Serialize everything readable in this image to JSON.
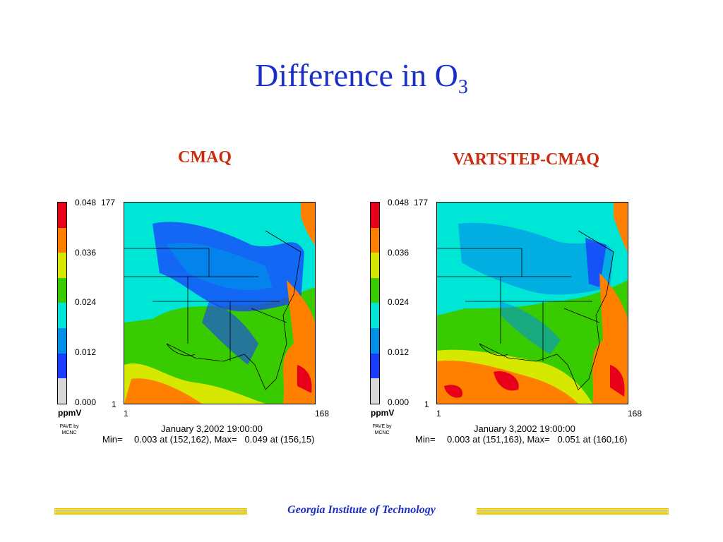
{
  "title": {
    "text": "Difference in O",
    "subscript": "3"
  },
  "panels": [
    {
      "heading": "CMAQ",
      "colorbar": {
        "top": "0.048",
        "t2": "0.036",
        "t3": "0.024",
        "t4": "0.012",
        "t5": "0.000",
        "unit": "ppmV"
      },
      "axis": {
        "y_max": "177",
        "y_min": "1",
        "x_min": "1",
        "x_max": "168"
      },
      "date": "January 3,2002 19:00:00",
      "minmax_label": "Min=",
      "minmax_value": "0.003 at (152,162), Max=   0.049 at (156,15)",
      "logo": "PAVE by MCNC"
    },
    {
      "heading": "VARTSTEP-CMAQ",
      "colorbar": {
        "top": "0.048",
        "t2": "0.036",
        "t3": "0.024",
        "t4": "0.012",
        "t5": "0.000",
        "unit": "ppmV"
      },
      "axis": {
        "y_max": "177",
        "y_min": "1",
        "x_min": "1",
        "x_max": "168"
      },
      "date": "January 3,2002 19:00:00",
      "minmax_label": "Min=",
      "minmax_value": "0.003 at (151,163), Max=   0.051 at (160,16)",
      "logo": "PAVE by MCNC"
    }
  ],
  "colorscale": [
    "#e8001a",
    "#ff7f00",
    "#d6e800",
    "#38cc00",
    "#00e6d6",
    "#0090e8",
    "#1a3cff",
    "#d8d8d8"
  ],
  "footer": "Georgia Institute of Technology"
}
